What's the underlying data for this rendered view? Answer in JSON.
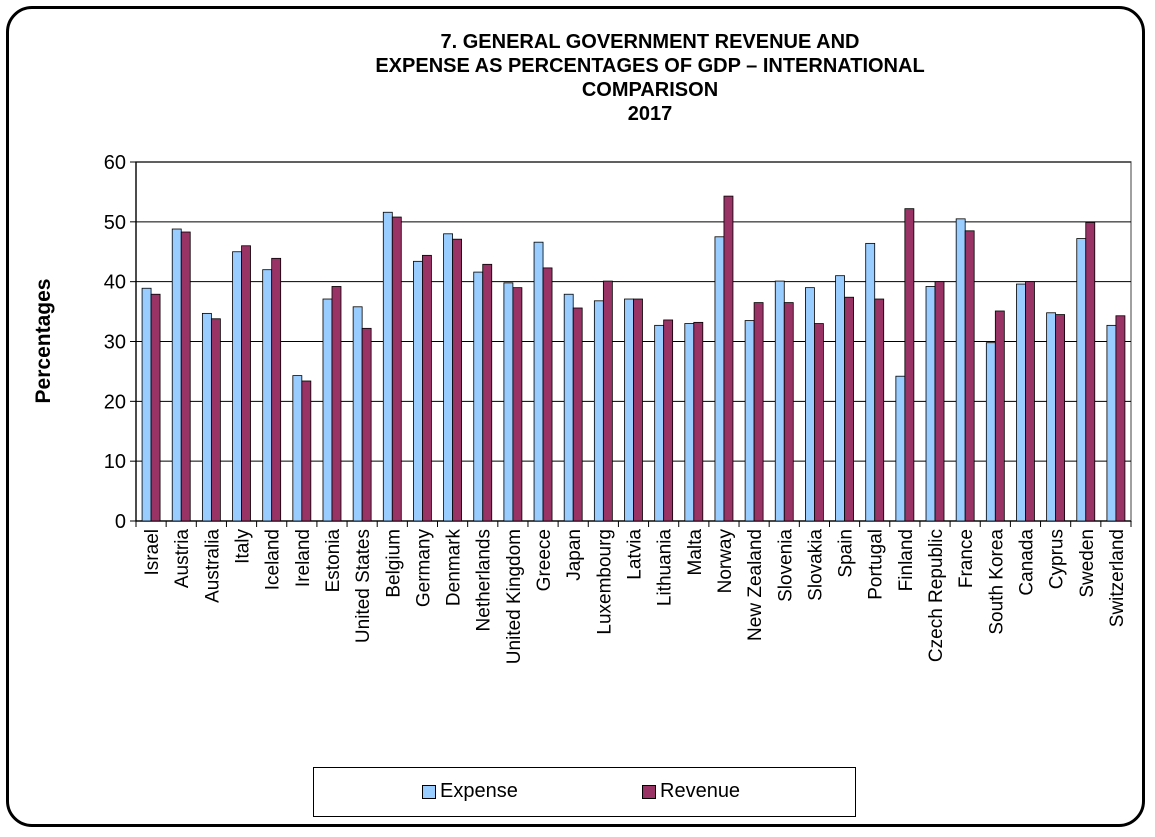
{
  "chart_data": {
    "type": "bar",
    "title_lines": [
      "7. GENERAL GOVERNMENT REVENUE AND",
      "EXPENSE AS PERCENTAGES OF GDP –  INTERNATIONAL",
      "COMPARISON",
      "2017"
    ],
    "ylabel": "Percentages",
    "xlabel": "",
    "ylim": [
      0,
      60
    ],
    "yticks": [
      0,
      10,
      20,
      30,
      40,
      50,
      60
    ],
    "grid": true,
    "legend_position": "bottom",
    "categories": [
      "Israel",
      "Austria",
      "Australia",
      "Italy",
      "Iceland",
      "Ireland",
      "Estonia",
      "United States",
      "Belgium",
      "Germany",
      "Denmark",
      "Netherlands",
      "United Kingdom",
      "Greece",
      "Japan",
      "Luxembourg",
      "Latvia",
      "Lithuania",
      "Malta",
      "Norway",
      "New Zealand",
      "Slovenia",
      "Slovakia",
      "Spain",
      "Portugal",
      "Finland",
      "Czech Republic",
      "France",
      "South Korea",
      "Canada",
      "Cyprus",
      "Sweden",
      "Switzerland"
    ],
    "series": [
      {
        "name": "Expense",
        "color": "#99ccff",
        "values": [
          38.9,
          48.8,
          34.7,
          45.0,
          42.0,
          24.3,
          37.1,
          35.8,
          51.6,
          43.4,
          48.0,
          41.6,
          39.8,
          46.6,
          37.9,
          36.8,
          37.1,
          32.7,
          33.0,
          47.5,
          33.5,
          40.1,
          39.0,
          41.0,
          46.4,
          24.2,
          39.2,
          50.5,
          29.8,
          39.6,
          34.8,
          47.2,
          32.7
        ]
      },
      {
        "name": "Revenue",
        "color": "#993366",
        "values": [
          37.9,
          48.3,
          33.8,
          46.0,
          43.9,
          23.4,
          39.2,
          32.2,
          50.8,
          44.4,
          47.1,
          42.9,
          39.0,
          42.3,
          35.6,
          40.1,
          37.1,
          33.6,
          33.2,
          54.3,
          36.5,
          36.5,
          33.0,
          37.4,
          37.1,
          52.2,
          40.0,
          48.5,
          35.1,
          40.0,
          34.5,
          49.9,
          34.3
        ]
      }
    ]
  }
}
